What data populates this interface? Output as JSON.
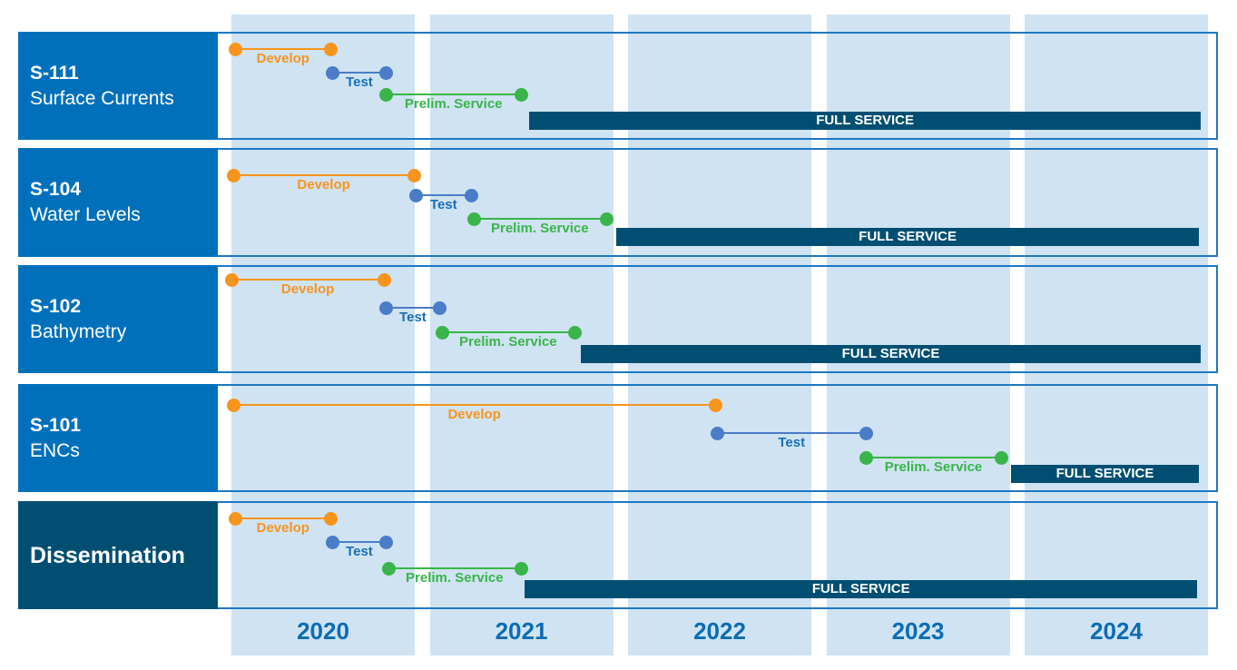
{
  "colors": {
    "develop": "#f7941d",
    "test": "#4a7cc7",
    "prelim": "#39b54a",
    "full": "#004f73",
    "year_col": "#cfe3f2",
    "label_bg": "#0070bb",
    "label_dark": "#004f73",
    "year_text": "#0b6cb5"
  },
  "chart_data": {
    "type": "gantt",
    "x_axis": {
      "ticks": [
        "2020",
        "2021",
        "2022",
        "2023",
        "2024"
      ],
      "range": [
        2020,
        2025
      ]
    },
    "phase_labels": {
      "develop": "Develop",
      "test": "Test",
      "prelim": "Prelim. Service",
      "full": "FULL SERVICE"
    },
    "rows": [
      {
        "code": "S-111",
        "name": "Surface Currents",
        "dark": false,
        "phases": {
          "develop": [
            2020.02,
            2020.5
          ],
          "test": [
            2020.51,
            2020.78
          ],
          "prelim": [
            2020.78,
            2021.46
          ],
          "full": [
            2021.5,
            2024.89
          ]
        }
      },
      {
        "code": "S-104",
        "name": "Water Levels",
        "dark": false,
        "phases": {
          "develop": [
            2020.01,
            2020.92
          ],
          "test": [
            2020.93,
            2021.21
          ],
          "prelim": [
            2021.22,
            2021.89
          ],
          "full": [
            2021.94,
            2024.88
          ]
        }
      },
      {
        "code": "S-102",
        "name": "Bathymetry",
        "dark": false,
        "phases": {
          "develop": [
            2020.0,
            2020.77
          ],
          "test": [
            2020.78,
            2021.05
          ],
          "prelim": [
            2021.06,
            2021.73
          ],
          "full": [
            2021.76,
            2024.89
          ]
        }
      },
      {
        "code": "S-101",
        "name": "ENCs",
        "dark": false,
        "phases": {
          "develop": [
            2020.01,
            2022.44
          ],
          "test": [
            2022.45,
            2023.2
          ],
          "prelim": [
            2023.2,
            2023.88
          ],
          "full": [
            2023.93,
            2024.88
          ]
        }
      },
      {
        "code": "Dissemination",
        "name": "",
        "dark": true,
        "phases": {
          "develop": [
            2020.02,
            2020.5
          ],
          "test": [
            2020.51,
            2020.78
          ],
          "prelim": [
            2020.79,
            2021.46
          ],
          "full": [
            2021.48,
            2024.87
          ]
        }
      }
    ]
  }
}
